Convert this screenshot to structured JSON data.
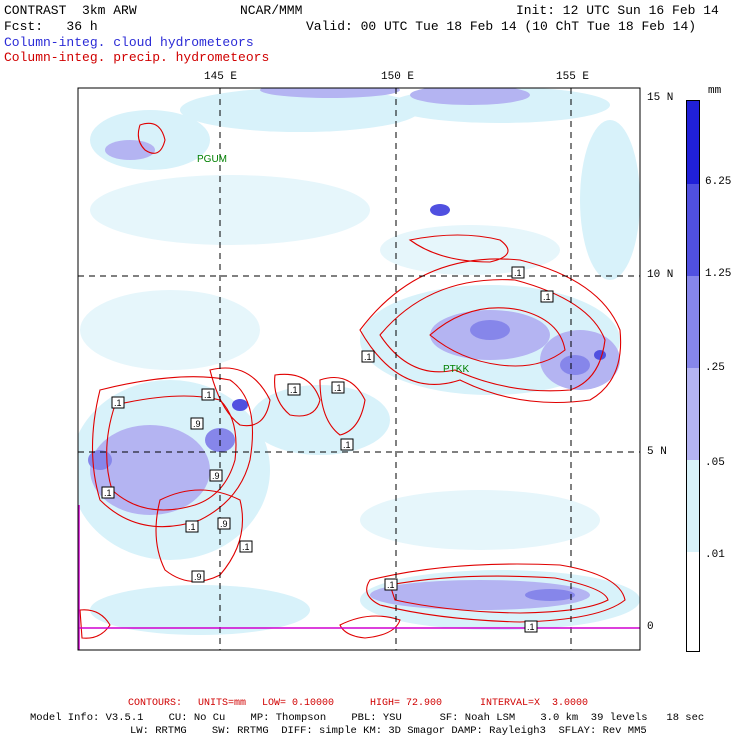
{
  "header": {
    "model": "CONTRAST  3km ARW",
    "forecast": "Fcst:   36 h",
    "center": "NCAR/MMM",
    "init": "Init: 12 UTC Sun 16 Feb 14",
    "valid": "Valid: 00 UTC Tue 18 Feb 14 (10 ChT Tue 18 Feb 14)",
    "field_cloud": "Column-integ. cloud hydrometeors",
    "field_precip": "Column-integ. precip. hydrometeors"
  },
  "map": {
    "lon_labels": [
      "145 E",
      "150 E",
      "155 E"
    ],
    "lat_labels": [
      "15 N",
      "10 N",
      "5 N",
      "0"
    ],
    "stations": [
      "PGUM",
      "PTKK"
    ],
    "contour_labels": [
      ".1",
      ".1",
      ".1",
      ".1",
      ".1",
      ".1",
      ".1",
      ".1",
      ".9",
      ".9",
      ".1",
      ".9",
      ".1",
      ".9",
      ".1",
      ".1",
      ".1"
    ]
  },
  "colorbar": {
    "unit": "mm",
    "labels": [
      "6.25",
      "1.25",
      ".25",
      ".05",
      ".01"
    ],
    "colors": [
      "#2020d8",
      "#5050e0",
      "#8686ea",
      "#b4b4f2",
      "#d8f2fa",
      "#ffffff"
    ]
  },
  "footer": {
    "contours_label": "CONTOURS:",
    "units": "UNITS=mm",
    "low": "LOW= 0.10000",
    "high": "HIGH= 72.900",
    "interval": "INTERVAL=X  3.0000",
    "line1": "Model Info: V3.5.1    CU: No Cu    MP: Thompson    PBL: YSU      SF: Noah LSM    3.0 km  39 levels   18 sec",
    "line2": "LW: RRTMG    SW: RRTMG  DIFF: simple KM: 3D Smagor DAMP: Rayleigh3  SFLAY: Rev MM5"
  }
}
